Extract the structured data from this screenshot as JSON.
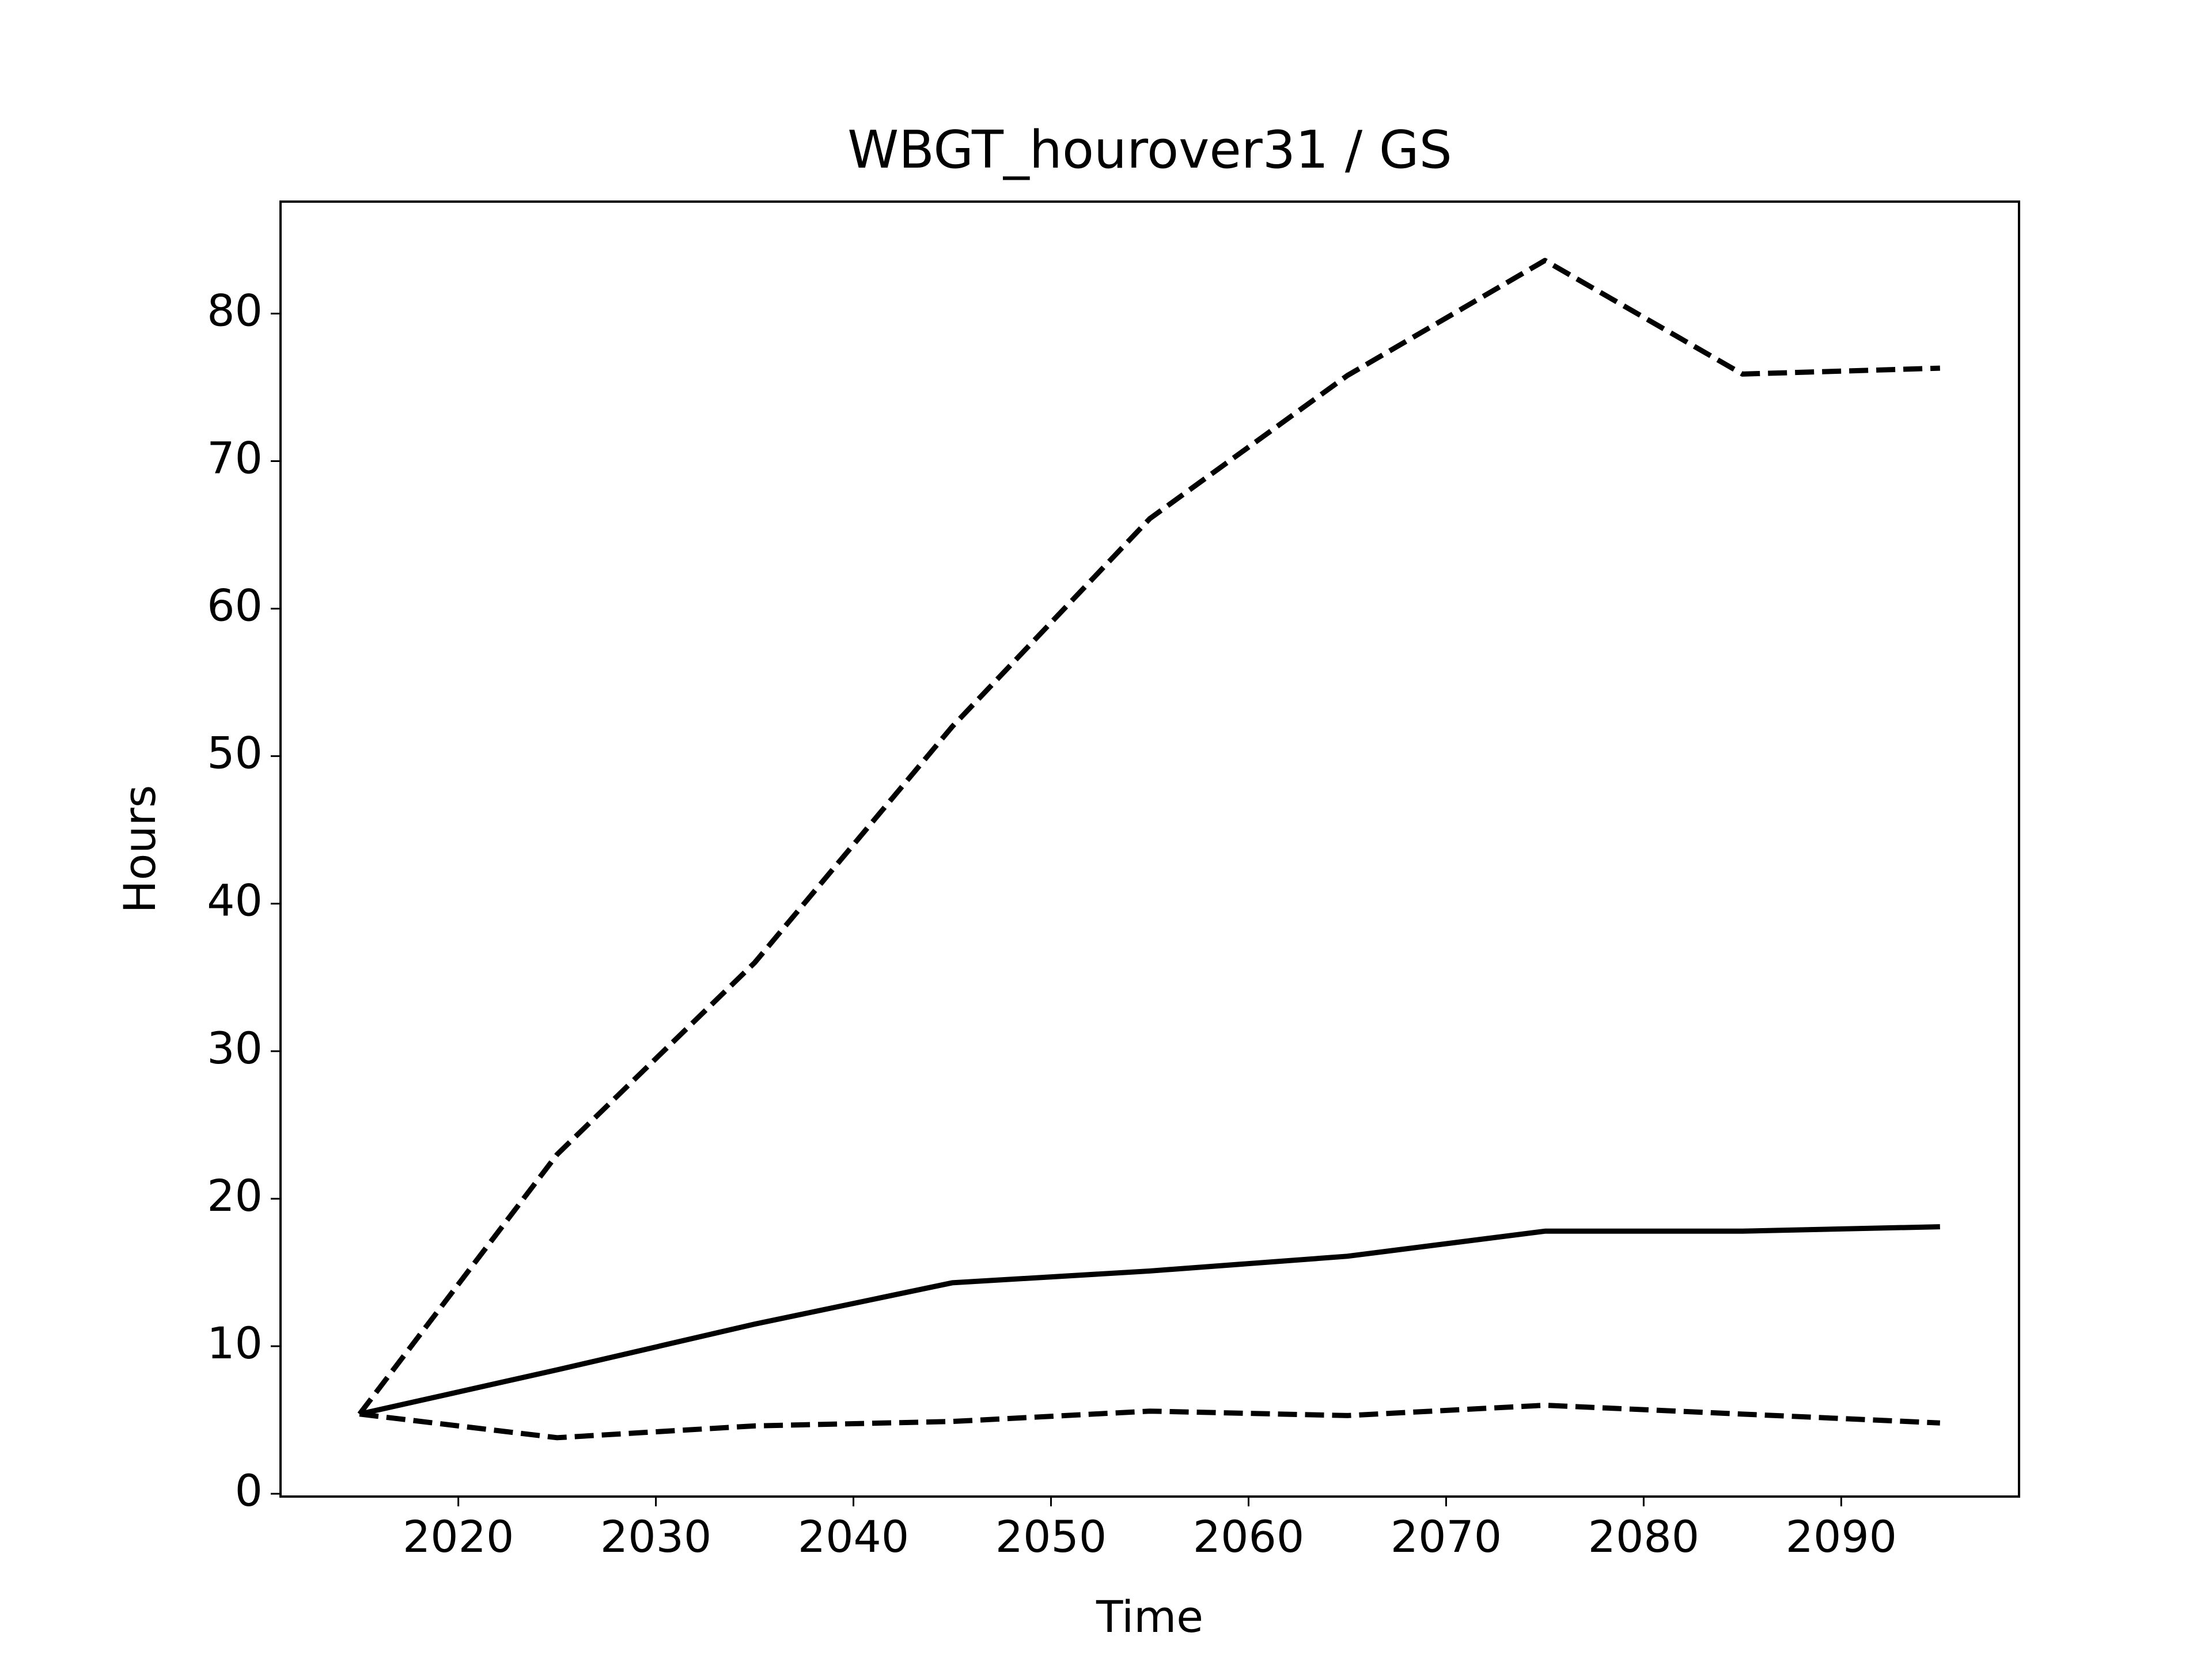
{
  "chart_data": {
    "type": "line",
    "title": "WBGT_hourover31 / GS",
    "x_label": "Time",
    "y_label": "Hours",
    "x": [
      2015,
      2025,
      2035,
      2045,
      2055,
      2065,
      2075,
      2085,
      2095
    ],
    "series": [
      {
        "color": "#000000",
        "linestyle": "solid",
        "values": [
          5.4,
          8.4,
          11.5,
          14.3,
          15.1,
          16.1,
          17.8,
          17.8,
          18.1
        ]
      },
      {
        "color": "#000000",
        "linestyle": "dashed",
        "values": [
          5.4,
          23.0,
          36.0,
          52.0,
          66.1,
          75.8,
          83.6,
          75.9,
          76.3
        ]
      },
      {
        "color": "#000000",
        "linestyle": "dashed",
        "values": [
          5.4,
          3.8,
          4.6,
          4.9,
          5.6,
          5.3,
          6.0,
          5.4,
          4.8
        ]
      }
    ],
    "xlim": [
      2011,
      2099
    ],
    "ylim": [
      -0.19,
      87.59
    ],
    "xticks": [
      2020,
      2030,
      2040,
      2050,
      2060,
      2070,
      2080,
      2090
    ],
    "yticks": [
      0,
      10,
      20,
      30,
      40,
      50,
      60,
      70,
      80
    ],
    "grid": false
  }
}
